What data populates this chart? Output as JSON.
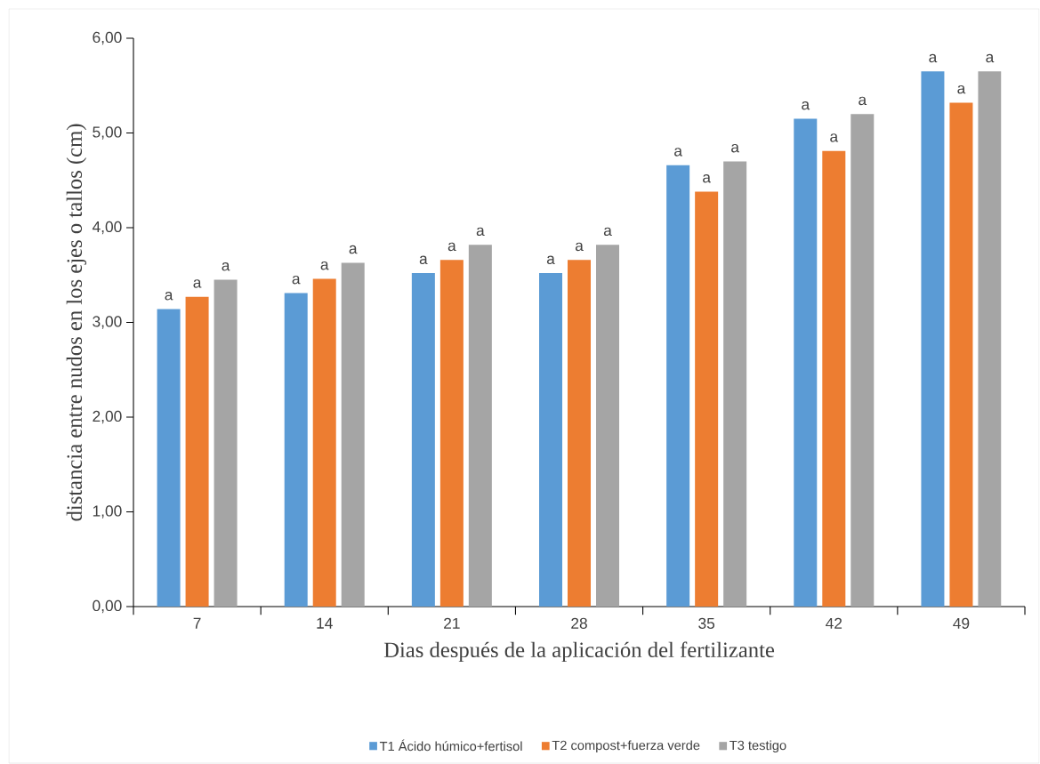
{
  "chart_data": {
    "type": "bar",
    "xlabel": "Dias después de la aplicación del fertilizante",
    "ylabel": "distancia entre nudos en los ejes o tallos (cm)",
    "categories": [
      "7",
      "14",
      "21",
      "28",
      "35",
      "42",
      "49"
    ],
    "series": [
      {
        "name": "T1 Ácido húmico+fertisol",
        "color": "#5b9bd5",
        "values": [
          3.14,
          3.31,
          3.52,
          3.52,
          4.66,
          5.15,
          5.65
        ],
        "value_labels": [
          "a",
          "a",
          "a",
          "a",
          "a",
          "a",
          "a"
        ]
      },
      {
        "name": "T2 compost+fuerza verde",
        "color": "#ed7d31",
        "values": [
          3.27,
          3.46,
          3.66,
          3.66,
          4.38,
          4.81,
          5.32
        ],
        "value_labels": [
          "a",
          "a",
          "a",
          "a",
          "a",
          "a",
          "a"
        ]
      },
      {
        "name": "T3 testigo",
        "color": "#a5a5a5",
        "values": [
          3.45,
          3.63,
          3.82,
          3.82,
          4.7,
          5.2,
          5.65
        ],
        "value_labels": [
          "a",
          "a",
          "a",
          "a",
          "a",
          "a",
          "a"
        ]
      }
    ],
    "ylim": [
      0,
      6
    ],
    "yticks": [
      {
        "value": 0,
        "label": "0,00"
      },
      {
        "value": 1,
        "label": "1,00"
      },
      {
        "value": 2,
        "label": "2,00"
      },
      {
        "value": 3,
        "label": "3,00"
      },
      {
        "value": 4,
        "label": "4,00"
      },
      {
        "value": 5,
        "label": "5,00"
      },
      {
        "value": 6,
        "label": "6,00"
      }
    ],
    "legend": "bottom",
    "grid": false
  }
}
